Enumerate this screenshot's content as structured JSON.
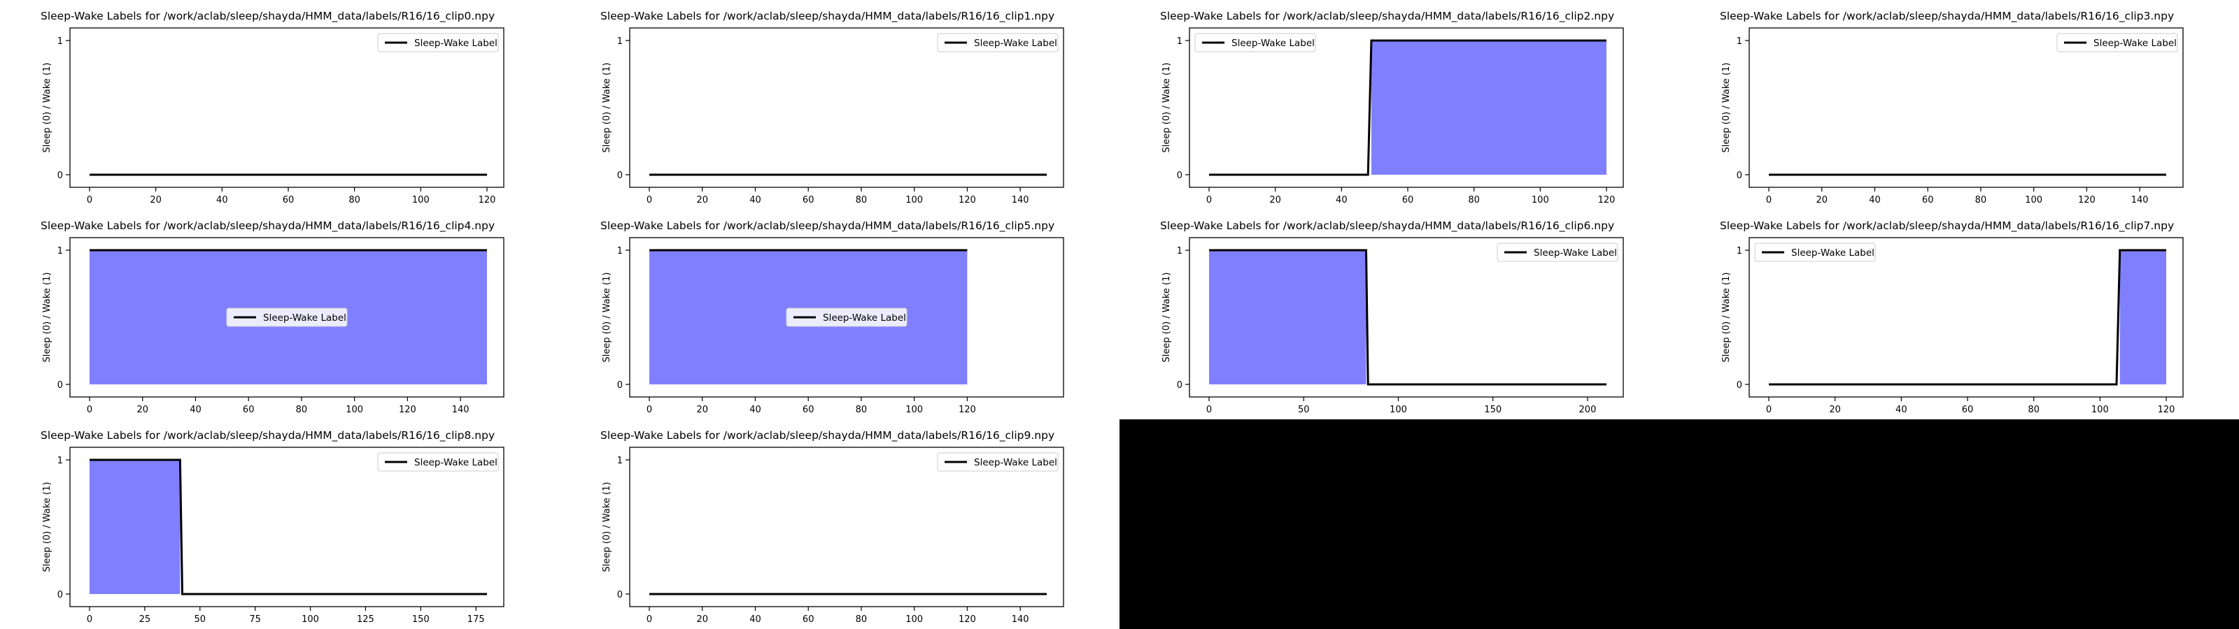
{
  "figure": {
    "filler_color": "#000000",
    "line_color": "#000000",
    "fill_color": "#8080ff"
  },
  "chart_data": [
    {
      "type": "line",
      "title": "Sleep-Wake Labels for /work/aclab/sleep/shayda/HMM_data/labels/R16/16_clip0.npy",
      "ylabel": "Sleep (0) / Wake (1)",
      "xlim": [
        0,
        120
      ],
      "ylim": [
        0,
        1
      ],
      "xticks": [
        0,
        20,
        40,
        60,
        80,
        100,
        120
      ],
      "yticks": [
        0,
        1
      ],
      "legend": {
        "label": "Sleep-Wake Label",
        "position": "top-right"
      },
      "segments": [
        {
          "x0": 0,
          "x1": 120,
          "value": 0
        }
      ]
    },
    {
      "type": "line",
      "title": "Sleep-Wake Labels for /work/aclab/sleep/shayda/HMM_data/labels/R16/16_clip1.npy",
      "ylabel": "Sleep (0) / Wake (1)",
      "xlim": [
        0,
        150
      ],
      "ylim": [
        0,
        1
      ],
      "xticks": [
        0,
        20,
        40,
        60,
        80,
        100,
        120,
        140
      ],
      "yticks": [
        0,
        1
      ],
      "legend": {
        "label": "Sleep-Wake Label",
        "position": "top-right"
      },
      "segments": [
        {
          "x0": 0,
          "x1": 150,
          "value": 0
        }
      ]
    },
    {
      "type": "line",
      "title": "Sleep-Wake Labels for /work/aclab/sleep/shayda/HMM_data/labels/R16/16_clip2.npy",
      "ylabel": "Sleep (0) / Wake (1)",
      "xlim": [
        0,
        120
      ],
      "ylim": [
        0,
        1
      ],
      "xticks": [
        0,
        20,
        40,
        60,
        80,
        100,
        120
      ],
      "yticks": [
        0,
        1
      ],
      "legend": {
        "label": "Sleep-Wake Label",
        "position": "top-left"
      },
      "segments": [
        {
          "x0": 0,
          "x1": 48,
          "value": 0
        },
        {
          "x0": 49,
          "x1": 120,
          "value": 1
        }
      ]
    },
    {
      "type": "line",
      "title": "Sleep-Wake Labels for /work/aclab/sleep/shayda/HMM_data/labels/R16/16_clip3.npy",
      "ylabel": "Sleep (0) / Wake (1)",
      "xlim": [
        0,
        150
      ],
      "ylim": [
        0,
        1
      ],
      "xticks": [
        0,
        20,
        40,
        60,
        80,
        100,
        120,
        140
      ],
      "yticks": [
        0,
        1
      ],
      "legend": {
        "label": "Sleep-Wake Label",
        "position": "top-right"
      },
      "segments": [
        {
          "x0": 0,
          "x1": 150,
          "value": 0
        }
      ]
    },
    {
      "type": "line",
      "title": "Sleep-Wake Labels for /work/aclab/sleep/shayda/HMM_data/labels/R16/16_clip4.npy",
      "ylabel": "Sleep (0) / Wake (1)",
      "xlim": [
        0,
        150
      ],
      "ylim": [
        0,
        1
      ],
      "xticks": [
        0,
        20,
        40,
        60,
        80,
        100,
        120,
        140
      ],
      "yticks": [
        0,
        1
      ],
      "legend": {
        "label": "Sleep-Wake Label",
        "position": "center"
      },
      "segments": [
        {
          "x0": 0,
          "x1": 150,
          "value": 1
        }
      ]
    },
    {
      "type": "line",
      "title": "Sleep-Wake Labels for /work/aclab/sleep/shayda/HMM_data/labels/R16/16_clip5.npy",
      "ylabel": "Sleep (0) / Wake (1)",
      "xlim": [
        0,
        150
      ],
      "ylim": [
        0,
        1
      ],
      "xticks": [
        0,
        20,
        40,
        60,
        80,
        100,
        120
      ],
      "yticks": [
        0,
        1
      ],
      "legend": {
        "label": "Sleep-Wake Label",
        "position": "center"
      },
      "segments": [
        {
          "x0": 0,
          "x1": 120,
          "value": 1
        }
      ]
    },
    {
      "type": "line",
      "title": "Sleep-Wake Labels for /work/aclab/sleep/shayda/HMM_data/labels/R16/16_clip6.npy",
      "ylabel": "Sleep (0) / Wake (1)",
      "xlim": [
        0,
        210
      ],
      "ylim": [
        0,
        1
      ],
      "xticks": [
        0,
        50,
        100,
        150,
        200
      ],
      "yticks": [
        0,
        1
      ],
      "legend": {
        "label": "Sleep-Wake Label",
        "position": "top-right"
      },
      "segments": [
        {
          "x0": 0,
          "x1": 83,
          "value": 1
        },
        {
          "x0": 84,
          "x1": 210,
          "value": 0
        }
      ]
    },
    {
      "type": "line",
      "title": "Sleep-Wake Labels for /work/aclab/sleep/shayda/HMM_data/labels/R16/16_clip7.npy",
      "ylabel": "Sleep (0) / Wake (1)",
      "xlim": [
        0,
        120
      ],
      "ylim": [
        0,
        1
      ],
      "xticks": [
        0,
        20,
        40,
        60,
        80,
        100,
        120
      ],
      "yticks": [
        0,
        1
      ],
      "legend": {
        "label": "Sleep-Wake Label",
        "position": "top-left"
      },
      "segments": [
        {
          "x0": 0,
          "x1": 105,
          "value": 0
        },
        {
          "x0": 106,
          "x1": 120,
          "value": 1
        }
      ]
    },
    {
      "type": "line",
      "title": "Sleep-Wake Labels for /work/aclab/sleep/shayda/HMM_data/labels/R16/16_clip8.npy",
      "ylabel": "Sleep (0) / Wake (1)",
      "xlim": [
        0,
        180
      ],
      "ylim": [
        0,
        1
      ],
      "xticks": [
        0,
        25,
        50,
        75,
        100,
        125,
        150,
        175
      ],
      "yticks": [
        0,
        1
      ],
      "legend": {
        "label": "Sleep-Wake Label",
        "position": "top-right"
      },
      "segments": [
        {
          "x0": 0,
          "x1": 41,
          "value": 1
        },
        {
          "x0": 42,
          "x1": 180,
          "value": 0
        }
      ]
    },
    {
      "type": "line",
      "title": "Sleep-Wake Labels for /work/aclab/sleep/shayda/HMM_data/labels/R16/16_clip9.npy",
      "ylabel": "Sleep (0) / Wake (1)",
      "xlim": [
        0,
        150
      ],
      "ylim": [
        0,
        1
      ],
      "xticks": [
        0,
        20,
        40,
        60,
        80,
        100,
        120,
        140
      ],
      "yticks": [
        0,
        1
      ],
      "legend": {
        "label": "Sleep-Wake Label",
        "position": "top-right"
      },
      "segments": [
        {
          "x0": 0,
          "x1": 150,
          "value": 0
        }
      ]
    }
  ]
}
